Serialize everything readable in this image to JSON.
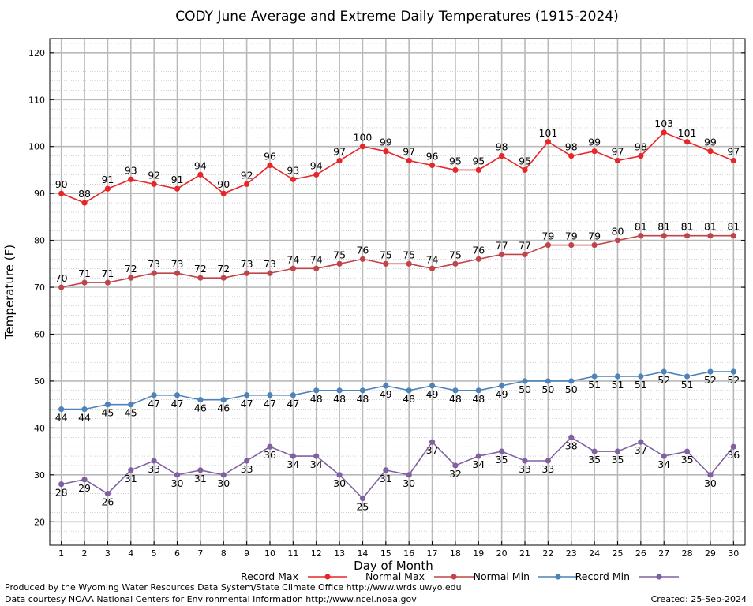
{
  "chart_data": {
    "type": "line",
    "title": "CODY June Average and Extreme Daily Temperatures (1915-2024)",
    "xlabel": "Day of Month",
    "ylabel": "Temperature (F)",
    "x": [
      1,
      2,
      3,
      4,
      5,
      6,
      7,
      8,
      9,
      10,
      11,
      12,
      13,
      14,
      15,
      16,
      17,
      18,
      19,
      20,
      21,
      22,
      23,
      24,
      25,
      26,
      27,
      28,
      29,
      30
    ],
    "xlim": [
      0.5,
      30.5
    ],
    "ylim": [
      15,
      123
    ],
    "yticks": [
      20,
      30,
      40,
      50,
      60,
      70,
      80,
      90,
      100,
      110,
      120
    ],
    "grid": true,
    "legend_position": "bottom",
    "series": [
      {
        "name": "Record Max",
        "color": "#e8262a",
        "label_pos": "above",
        "values": [
          90,
          88,
          91,
          93,
          92,
          91,
          94,
          90,
          92,
          96,
          93,
          94,
          97,
          100,
          99,
          97,
          96,
          95,
          95,
          98,
          95,
          101,
          98,
          99,
          97,
          98,
          103,
          101,
          99,
          97
        ]
      },
      {
        "name": "Normal Max",
        "color": "#c0454a",
        "label_pos": "above",
        "values": [
          70,
          71,
          71,
          72,
          73,
          73,
          72,
          72,
          73,
          73,
          74,
          74,
          75,
          76,
          75,
          75,
          74,
          75,
          76,
          77,
          77,
          79,
          79,
          79,
          80,
          81,
          81,
          81,
          81,
          81
        ]
      },
      {
        "name": "Normal Min",
        "color": "#4d83b8",
        "label_pos": "below",
        "values": [
          44,
          44,
          45,
          45,
          47,
          47,
          46,
          46,
          47,
          47,
          47,
          48,
          48,
          48,
          49,
          48,
          49,
          48,
          48,
          49,
          50,
          50,
          50,
          51,
          51,
          51,
          52,
          51,
          52,
          52
        ]
      },
      {
        "name": "Record Min",
        "color": "#8060a0",
        "label_pos": "below",
        "values": [
          28,
          29,
          26,
          31,
          33,
          30,
          31,
          30,
          33,
          36,
          34,
          34,
          30,
          25,
          31,
          30,
          37,
          32,
          34,
          35,
          33,
          33,
          38,
          35,
          35,
          37,
          34,
          35,
          30,
          36
        ]
      }
    ]
  },
  "footer": {
    "produced_by": "Produced by the Wyoming Water Resources Data System/State Climate Office http://www.wrds.uwyo.edu",
    "data_courtesy": "Data courtesy NOAA National Centers for Environmental Information http://www.ncei.noaa.gov",
    "created": "Created:  25-Sep-2024"
  }
}
